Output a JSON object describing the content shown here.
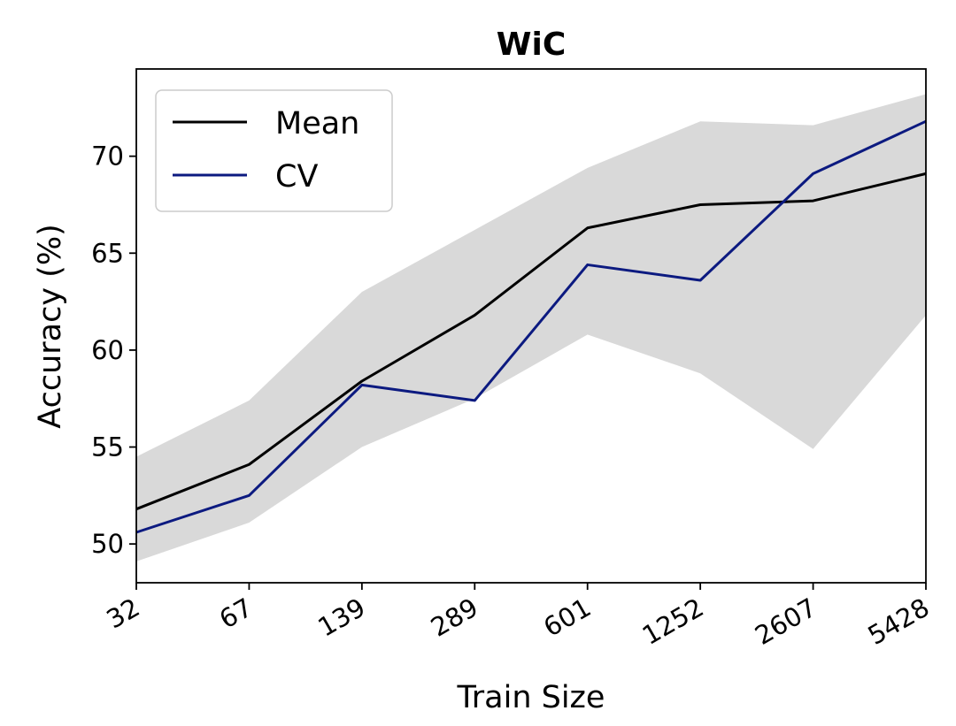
{
  "chart_data": {
    "type": "line",
    "title": "WiC",
    "xlabel": "Train Size",
    "ylabel": "Accuracy (%)",
    "categories": [
      "32",
      "67",
      "139",
      "289",
      "601",
      "1252",
      "2607",
      "5428"
    ],
    "ylim": [
      48,
      74.5
    ],
    "yticks": [
      50,
      55,
      60,
      65,
      70
    ],
    "series": [
      {
        "name": "Mean",
        "color": "#000000",
        "values": [
          51.8,
          54.1,
          58.4,
          61.8,
          66.3,
          67.5,
          67.7,
          69.1
        ]
      },
      {
        "name": "CV",
        "color": "#0c1a80",
        "values": [
          50.6,
          52.5,
          58.2,
          57.4,
          64.4,
          63.6,
          69.1,
          71.8
        ]
      }
    ],
    "band": {
      "color": "#d9d9d9",
      "lower": [
        49.1,
        51.1,
        55.0,
        57.5,
        60.8,
        58.8,
        54.9,
        61.8
      ],
      "upper": [
        54.5,
        57.4,
        63.0,
        66.2,
        69.4,
        71.8,
        71.6,
        73.2
      ]
    },
    "legend_position": "top-left",
    "grid": false
  }
}
